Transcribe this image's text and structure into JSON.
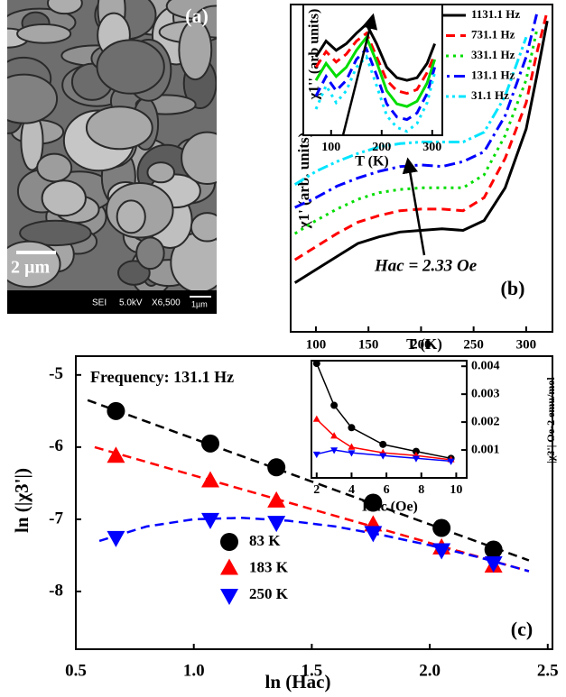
{
  "image": {
    "labels": {
      "panel": "(a)",
      "scale": "2 µm",
      "mode": "SEI",
      "voltage": "5.0kV",
      "magnification": "X6,500",
      "bar": "1µm"
    }
  },
  "chart_data": [
    {
      "type": "line",
      "panel": "(b)",
      "xlabel": "T (K)",
      "ylabel": "χ1' (arb. units)",
      "annotation": "Hac = 2.33 Oe",
      "xlim": [
        76,
        325
      ],
      "ylim": [
        0,
        100
      ],
      "xticks": [
        100,
        150,
        200,
        250,
        300
      ],
      "legend": "upper right",
      "x": [
        80,
        100,
        120,
        140,
        160,
        180,
        200,
        220,
        240,
        260,
        280,
        300,
        310,
        320
      ],
      "series": [
        {
          "name": "1131.1 Hz",
          "color": "#000000",
          "style": "solid",
          "values": [
            15,
            19,
            23,
            27,
            29,
            30.5,
            31,
            31.5,
            31,
            34,
            44,
            62,
            78,
            95
          ]
        },
        {
          "name": "731.1 Hz",
          "color": "#ff0000",
          "style": "dashed",
          "values": [
            22,
            26,
            30,
            33.5,
            35.5,
            37,
            37.5,
            37.5,
            37,
            41,
            53,
            70,
            85,
            98
          ]
        },
        {
          "name": "331.1 Hz",
          "color": "#00dd00",
          "style": "dotted",
          "values": [
            30,
            34,
            37.5,
            40.5,
            42.5,
            43.5,
            44,
            44,
            44,
            48,
            60,
            77,
            92,
            null
          ]
        },
        {
          "name": "131.1 Hz",
          "color": "#0000ff",
          "style": "dashdot",
          "values": [
            38,
            41,
            44.5,
            47,
            49,
            50.5,
            51,
            50.5,
            52,
            55,
            66,
            84,
            97,
            null
          ]
        },
        {
          "name": "31.1 Hz",
          "color": "#00e5ff",
          "style": "dashdotdot",
          "values": [
            45,
            49,
            52,
            54.5,
            56.5,
            57.5,
            58,
            58,
            58,
            61,
            72,
            90,
            null,
            null
          ]
        }
      ]
    },
    {
      "type": "line",
      "xlabel": "T (K)",
      "ylabel": "χ1'' (arb units)",
      "xlim": [
        45,
        320
      ],
      "ylim": [
        0,
        100
      ],
      "xticks": [
        100,
        200,
        300
      ],
      "x": [
        70,
        90,
        110,
        130,
        150,
        170,
        190,
        210,
        230,
        250,
        270,
        290,
        305
      ],
      "series": [
        {
          "color": "#000000",
          "style": "solid",
          "values": [
            60,
            72,
            65,
            70,
            78,
            85,
            70,
            52,
            44,
            42,
            44,
            55,
            70
          ]
        },
        {
          "color": "#ff0000",
          "style": "dashed",
          "values": [
            52,
            64,
            56,
            62,
            72,
            78,
            60,
            42,
            34,
            32,
            35,
            48,
            62
          ]
        },
        {
          "color": "#00dd00",
          "style": "solid",
          "values": [
            42,
            55,
            45,
            52,
            65,
            75,
            56,
            34,
            24,
            22,
            26,
            40,
            58
          ]
        },
        {
          "color": "#0000ff",
          "style": "dashed",
          "values": [
            30,
            45,
            34,
            42,
            58,
            66,
            46,
            24,
            14,
            12,
            17,
            32,
            52
          ]
        },
        {
          "color": "#00e5ff",
          "style": "dotted",
          "values": [
            20,
            38,
            25,
            34,
            52,
            60,
            38,
            15,
            6,
            3,
            9,
            25,
            48
          ]
        }
      ]
    },
    {
      "type": "scatter",
      "panel": "(c)",
      "title": "Frequency: 131.1 Hz",
      "xlabel": "ln (Hac)",
      "ylabel": "ln (|χ3'|)",
      "xlim": [
        0.5,
        2.52
      ],
      "ylim": [
        -8.8,
        -4.74
      ],
      "xticks": [
        0.5,
        {
          "value": 1,
          "label": "1.0"
        },
        1.5,
        {
          "value": 2,
          "label": "2.0"
        },
        2.5
      ],
      "yticks": [
        -5,
        -6,
        -7,
        -8
      ],
      "legend": "lower center",
      "x": [
        0.67,
        1.07,
        1.35,
        1.76,
        2.05,
        2.27
      ],
      "series": [
        {
          "name": "83 K",
          "color": "#000000",
          "marker": "circle",
          "values": [
            -5.5,
            -5.95,
            -6.28,
            -6.77,
            -7.12,
            -7.42
          ]
        },
        {
          "name": "183 K",
          "color": "#ff0000",
          "marker": "triangle-up",
          "values": [
            -6.13,
            -6.47,
            -6.75,
            -7.08,
            -7.4,
            -7.65
          ]
        },
        {
          "name": "250 K",
          "color": "#0000ff",
          "marker": "triangle-down",
          "values": [
            -7.25,
            -7.0,
            -7.04,
            -7.18,
            -7.42,
            -7.6
          ]
        }
      ],
      "fits": [
        {
          "color": "#000000",
          "x": [
            0.55,
            2.42
          ],
          "y": [
            -5.35,
            -7.57
          ]
        },
        {
          "color": "#ff0000",
          "x": [
            0.58,
            2.42
          ],
          "y": [
            -6.0,
            -7.72
          ]
        },
        {
          "color": "#0000ff",
          "x": [
            0.6,
            0.8,
            1.0,
            1.2,
            1.4,
            1.6,
            1.8,
            2.0,
            2.2,
            2.42
          ],
          "y": [
            -7.3,
            -7.1,
            -7.0,
            -6.98,
            -7.02,
            -7.1,
            -7.22,
            -7.36,
            -7.52,
            -7.72
          ]
        }
      ]
    },
    {
      "type": "line",
      "xlabel": "Hac (Oe)",
      "ylabel": "|χ3'| Oe-2 emu/mol",
      "yaxis": "right",
      "xlim": [
        1.7,
        10.6
      ],
      "ylim": [
        0,
        0.0042
      ],
      "xticks": [
        2,
        4,
        6,
        8,
        10
      ],
      "yticks": [
        0.001,
        0.002,
        0.003,
        0.004
      ],
      "x": [
        2,
        3,
        4,
        5.8,
        7.7,
        9.7
      ],
      "series": [
        {
          "color": "#000000",
          "style": "solid",
          "marker": "circle",
          "values": [
            0.0041,
            0.0026,
            0.0018,
            0.0012,
            0.00095,
            0.0007
          ]
        },
        {
          "color": "#ff0000",
          "style": "solid",
          "marker": "triangle-up",
          "values": [
            0.0021,
            0.0015,
            0.0011,
            0.0009,
            0.0008,
            0.00065
          ]
        },
        {
          "color": "#0000ff",
          "style": "solid",
          "marker": "triangle-down",
          "values": [
            0.00085,
            0.001,
            0.0009,
            0.0008,
            0.0007,
            0.0006
          ]
        }
      ]
    }
  ]
}
